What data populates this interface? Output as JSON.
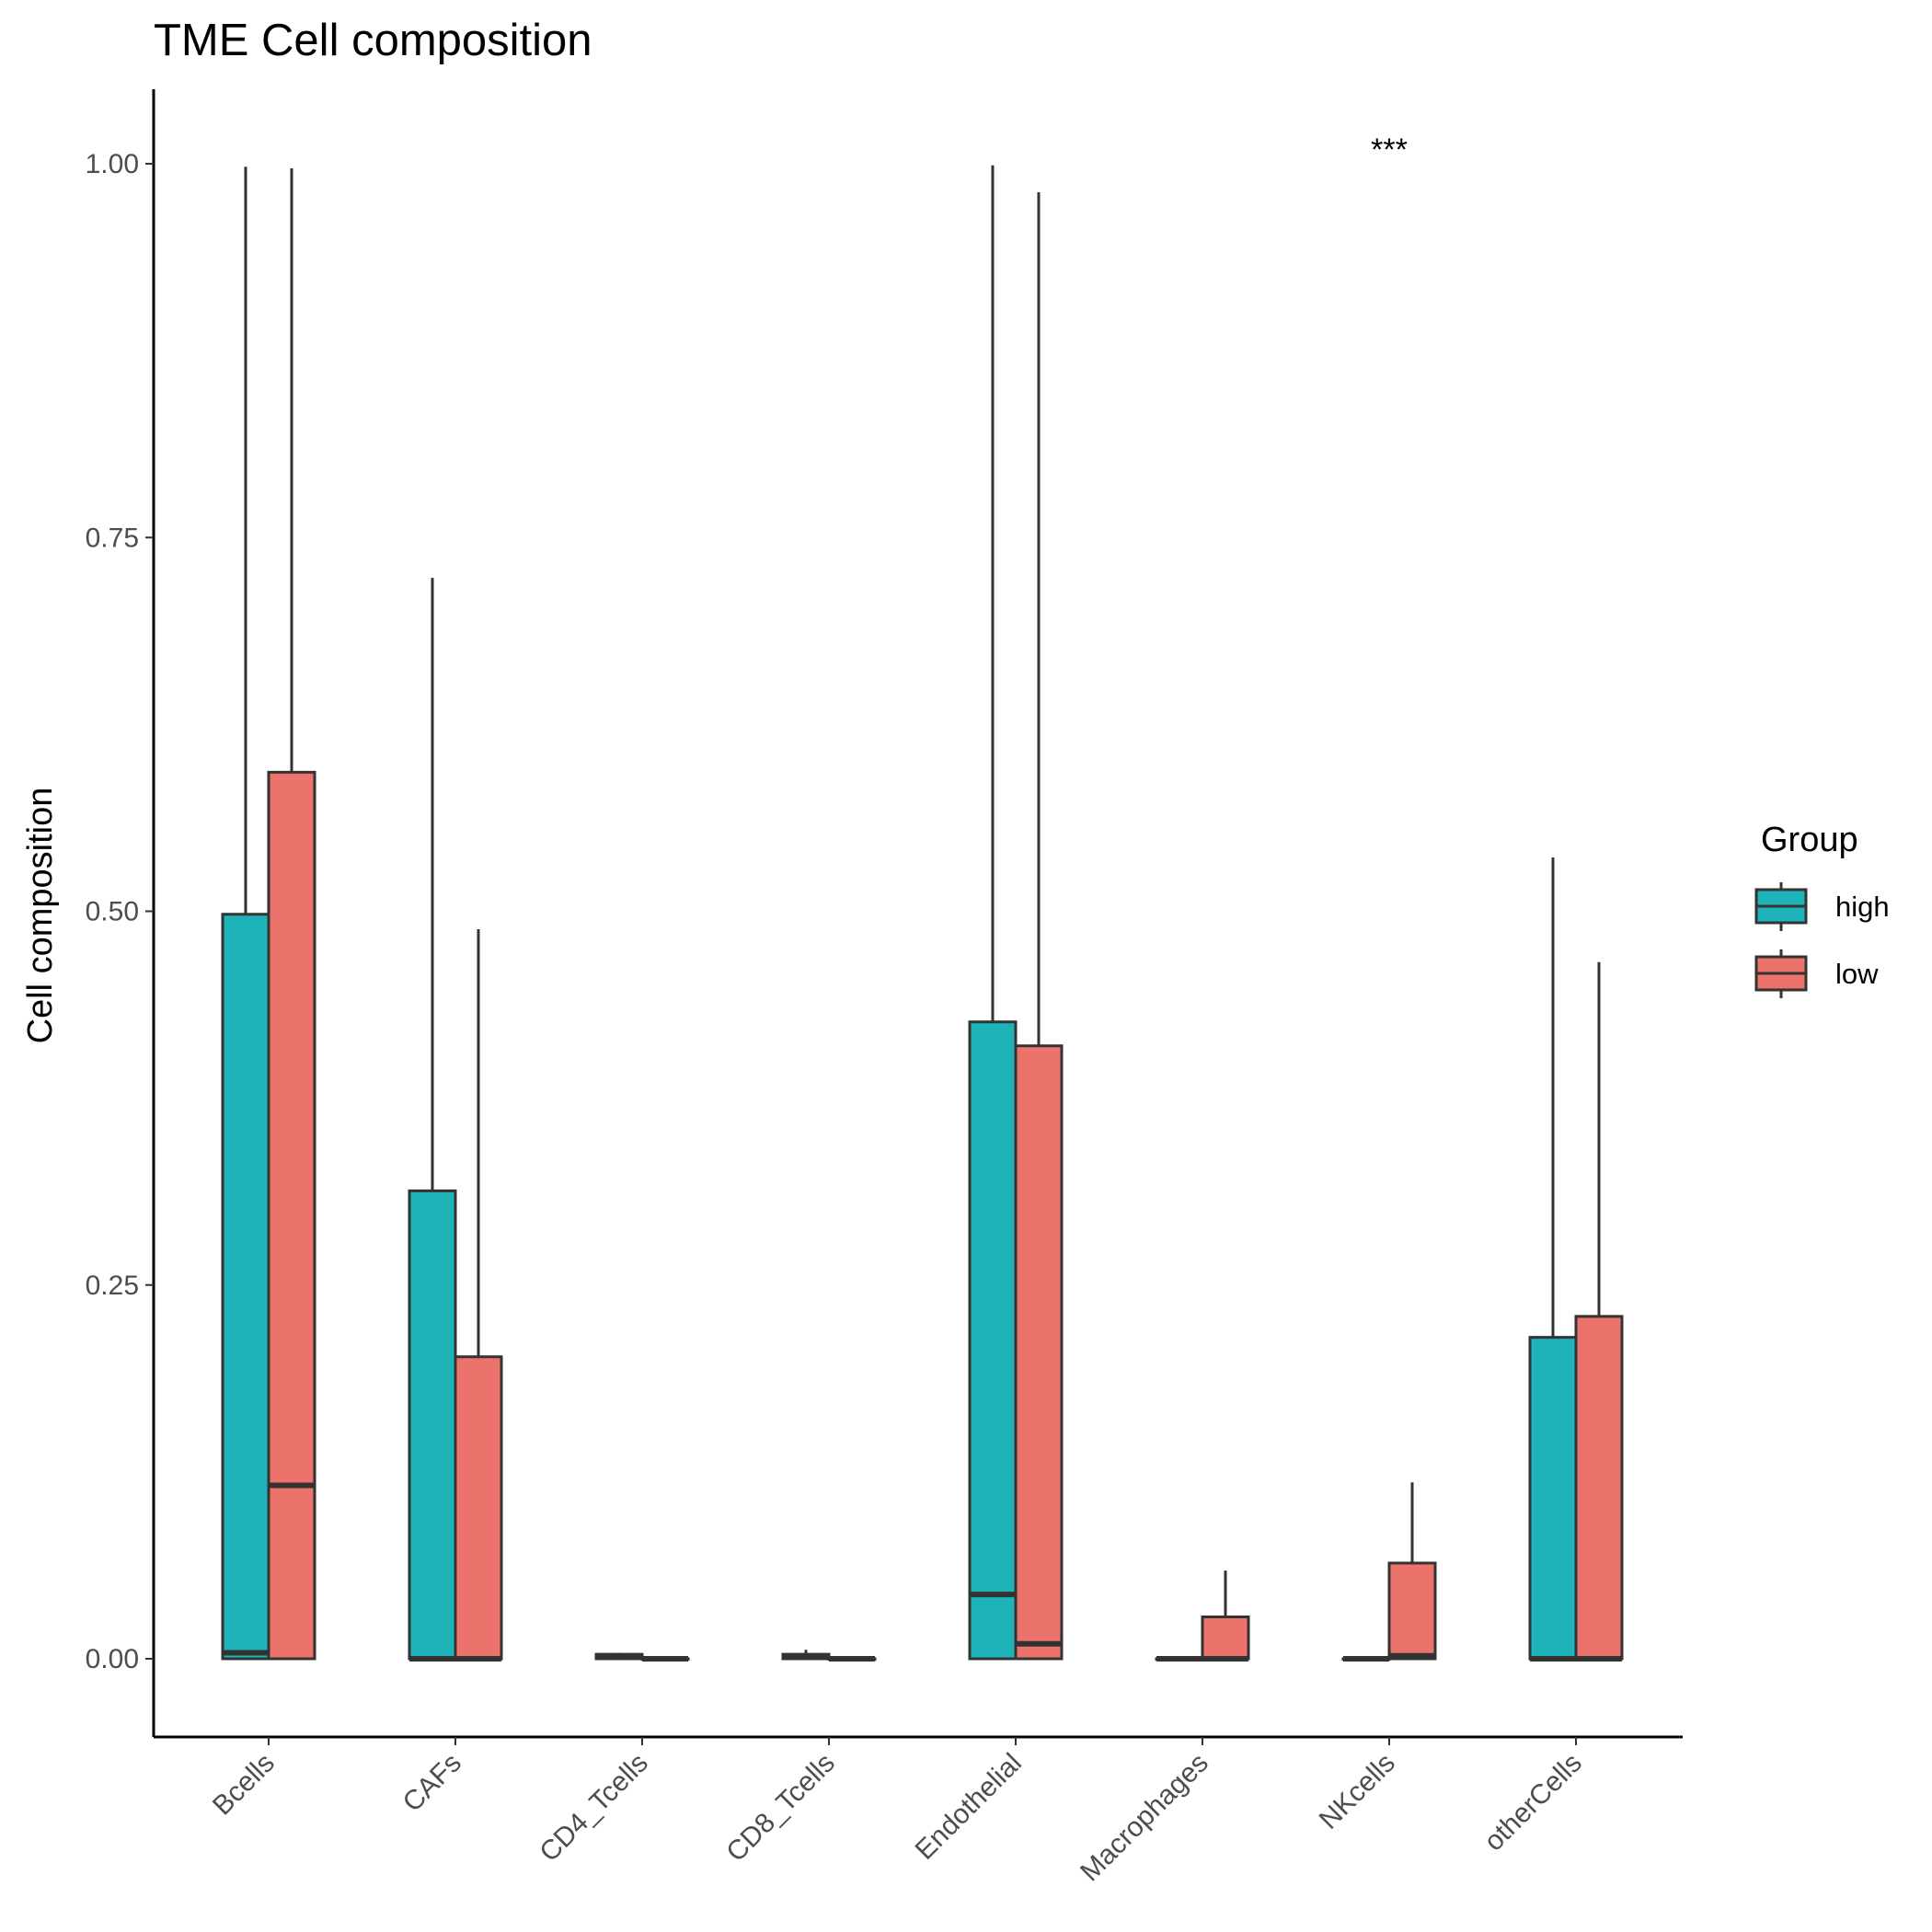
{
  "chart_data": {
    "type": "boxplot",
    "title": "TME Cell composition",
    "ylabel": "Cell composition",
    "xlabel": "",
    "ylim": [
      -0.045,
      1.05
    ],
    "yticks": [
      "0.00",
      "0.25",
      "0.50",
      "0.75",
      "1.00"
    ],
    "categories": [
      "Bcells",
      "CAFs",
      "CD4_Tcells",
      "CD8_Tcells",
      "Endothelial",
      "Macrophages",
      "NKcells",
      "otherCells"
    ],
    "legend": {
      "title": "Group",
      "position": "right"
    },
    "series": [
      {
        "name": "high",
        "color": "#1DB3B8",
        "boxes": [
          {
            "min": 0.0,
            "q1": 0.0,
            "median": 0.004,
            "q3": 0.498,
            "max": 0.998
          },
          {
            "min": 0.0,
            "q1": 0.0,
            "median": 0.0,
            "q3": 0.313,
            "max": 0.723
          },
          {
            "min": 0.0,
            "q1": 0.0,
            "median": 0.001,
            "q3": 0.003,
            "max": 0.004
          },
          {
            "min": 0.0,
            "q1": 0.0,
            "median": 0.001,
            "q3": 0.003,
            "max": 0.006
          },
          {
            "min": 0.0,
            "q1": 0.0,
            "median": 0.043,
            "q3": 0.426,
            "max": 0.999
          },
          {
            "min": 0.0,
            "q1": 0.0,
            "median": 0.0,
            "q3": 0.0,
            "max": 0.0
          },
          {
            "min": 0.0,
            "q1": 0.0,
            "median": 0.0,
            "q3": 0.0,
            "max": 0.0
          },
          {
            "min": 0.0,
            "q1": 0.0,
            "median": 0.0,
            "q3": 0.215,
            "max": 0.536
          }
        ]
      },
      {
        "name": "low",
        "color": "#EC736B",
        "boxes": [
          {
            "min": 0.0,
            "q1": 0.0,
            "median": 0.116,
            "q3": 0.593,
            "max": 0.997
          },
          {
            "min": 0.0,
            "q1": 0.0,
            "median": 0.0,
            "q3": 0.202,
            "max": 0.488
          },
          {
            "min": 0.0,
            "q1": 0.0,
            "median": 0.0,
            "q3": 0.0,
            "max": 0.0
          },
          {
            "min": 0.0,
            "q1": 0.0,
            "median": 0.0,
            "q3": 0.0,
            "max": 0.0
          },
          {
            "min": 0.0,
            "q1": 0.0,
            "median": 0.01,
            "q3": 0.41,
            "max": 0.981
          },
          {
            "min": 0.0,
            "q1": 0.0,
            "median": 0.0,
            "q3": 0.028,
            "max": 0.059
          },
          {
            "min": 0.0,
            "q1": 0.0,
            "median": 0.002,
            "q3": 0.064,
            "max": 0.118
          },
          {
            "min": 0.0,
            "q1": 0.0,
            "median": 0.0,
            "q3": 0.229,
            "max": 0.466
          }
        ]
      }
    ],
    "annotations": [
      {
        "category": "NKcells",
        "text": "***",
        "y": 1.01
      }
    ],
    "grid": false
  }
}
